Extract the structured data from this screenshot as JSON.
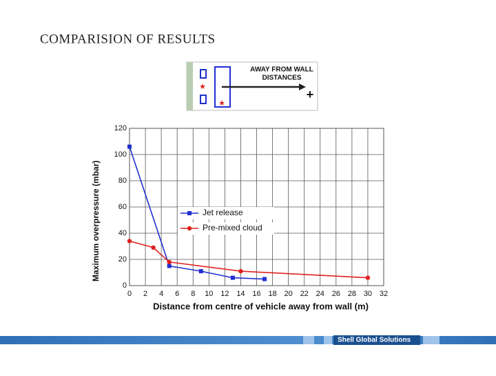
{
  "title": "COMPARISION OF RESULTS",
  "diagram": {
    "label_line1": "AWAY FROM WALL",
    "label_line2": "DISTANCES",
    "sign": "+"
  },
  "chart_data": {
    "type": "line",
    "x_label": "Distance from centre of vehicle away from wall (m)",
    "y_label": "Maximum overpressure (mbar)",
    "xlim": [
      0,
      32
    ],
    "xticks": [
      0,
      2,
      4,
      6,
      8,
      10,
      12,
      14,
      16,
      18,
      20,
      22,
      24,
      26,
      28,
      30,
      32
    ],
    "ylim": [
      0,
      120
    ],
    "yticks": [
      0,
      20,
      40,
      60,
      80,
      100,
      120
    ],
    "grid": true,
    "series": [
      {
        "name": "Jet release",
        "color": "#1f2fd0",
        "marker": "square",
        "x": [
          0,
          5,
          9,
          13,
          17
        ],
        "values": [
          106,
          15,
          11,
          6,
          5
        ]
      },
      {
        "name": "Pre-mixed cloud",
        "color": "#e02020",
        "marker": "circle",
        "x": [
          0,
          3,
          5,
          14,
          30
        ],
        "values": [
          34,
          29,
          18,
          11,
          6
        ]
      }
    ]
  },
  "footer": {
    "brand": "Shell Global Solutions"
  }
}
